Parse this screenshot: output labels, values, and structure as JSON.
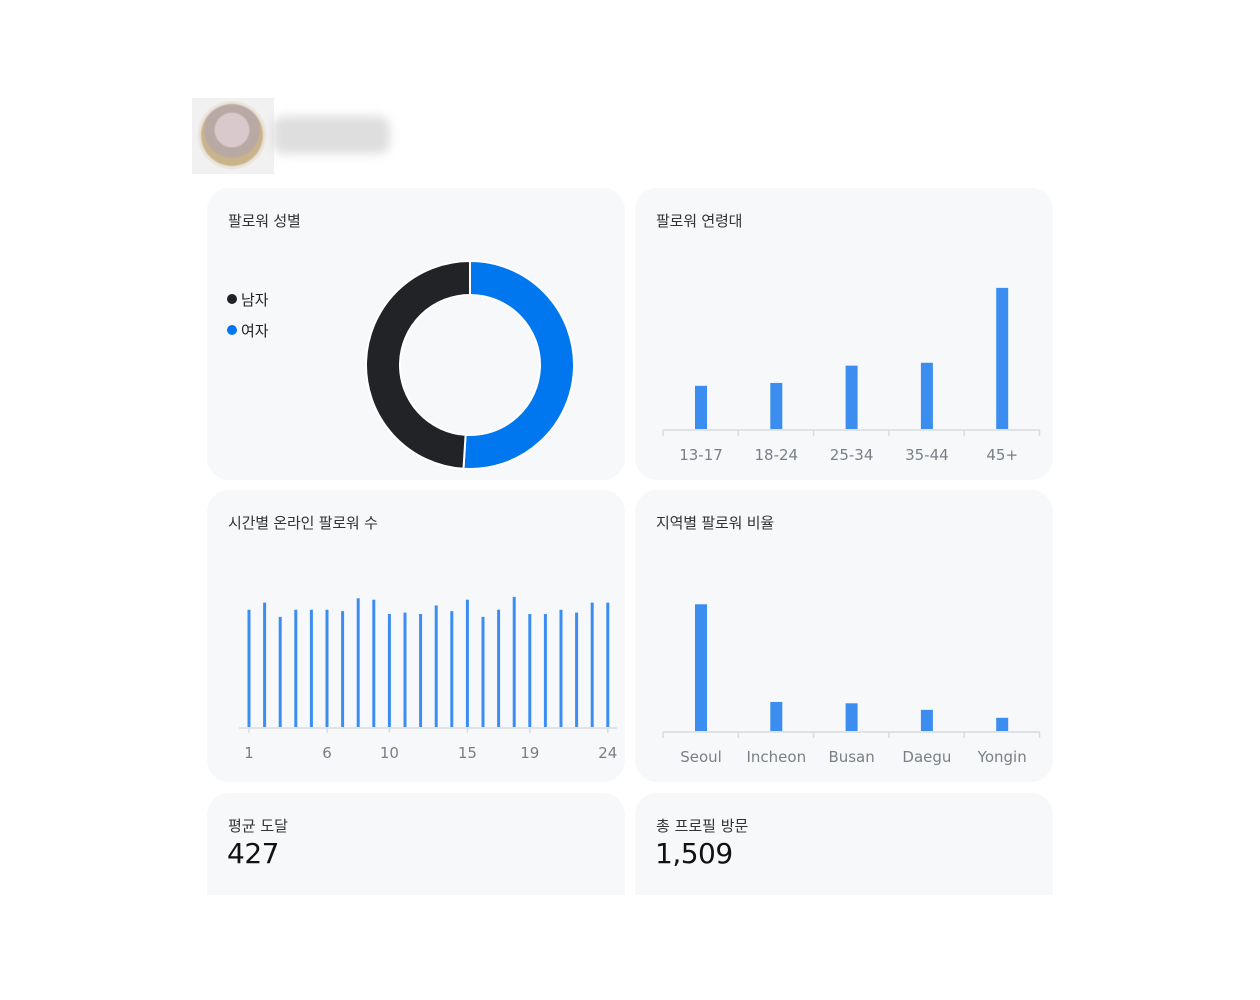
{
  "colors": {
    "accent": "#0077ee",
    "bar": "#3b8ef0",
    "male": "#212327",
    "card_bg": "#f7f8fa",
    "axis": "#d8dbe0"
  },
  "gender": {
    "title": "팔로워 성별",
    "legend": [
      "남자",
      "여자"
    ]
  },
  "age": {
    "title": "팔로워 연령대"
  },
  "hourly": {
    "title": "시간별 온라인 팔로워 수",
    "tick_labels": [
      "1",
      "6",
      "10",
      "15",
      "19",
      "24"
    ]
  },
  "region": {
    "title": "지역별 팔로워 비율"
  },
  "stats": {
    "avg_reach_label": "평균 도달",
    "avg_reach_value": "427",
    "profile_visits_label": "총 프로필 방문",
    "profile_visits_value": "1,509"
  },
  "chart_data": [
    {
      "type": "pie",
      "categories": [
        "남자",
        "여자"
      ],
      "values": [
        49,
        51
      ],
      "colors": [
        "#212327",
        "#0077ee"
      ],
      "donut": true
    },
    {
      "type": "bar",
      "categories": [
        "13-17",
        "18-24",
        "25-34",
        "35-44",
        "45+"
      ],
      "values": [
        15,
        16,
        22,
        23,
        49
      ],
      "ylim": [
        0,
        50
      ]
    },
    {
      "type": "bar",
      "categories": [
        "1",
        "2",
        "3",
        "4",
        "5",
        "6",
        "7",
        "8",
        "9",
        "10",
        "11",
        "12",
        "13",
        "14",
        "15",
        "16",
        "17",
        "18",
        "19",
        "20",
        "21",
        "22",
        "23",
        "24"
      ],
      "values": [
        82,
        87,
        77,
        82,
        82,
        82,
        81,
        90,
        89,
        79,
        80,
        79,
        85,
        81,
        89,
        77,
        82,
        91,
        79,
        79,
        82,
        80,
        87,
        87
      ],
      "ylim": [
        0,
        100
      ]
    },
    {
      "type": "bar",
      "categories": [
        "Seoul",
        "Incheon",
        "Busan",
        "Daegu",
        "Yongin"
      ],
      "values": [
        48,
        11,
        10.5,
        8,
        5
      ],
      "ylim": [
        0,
        50
      ]
    }
  ]
}
